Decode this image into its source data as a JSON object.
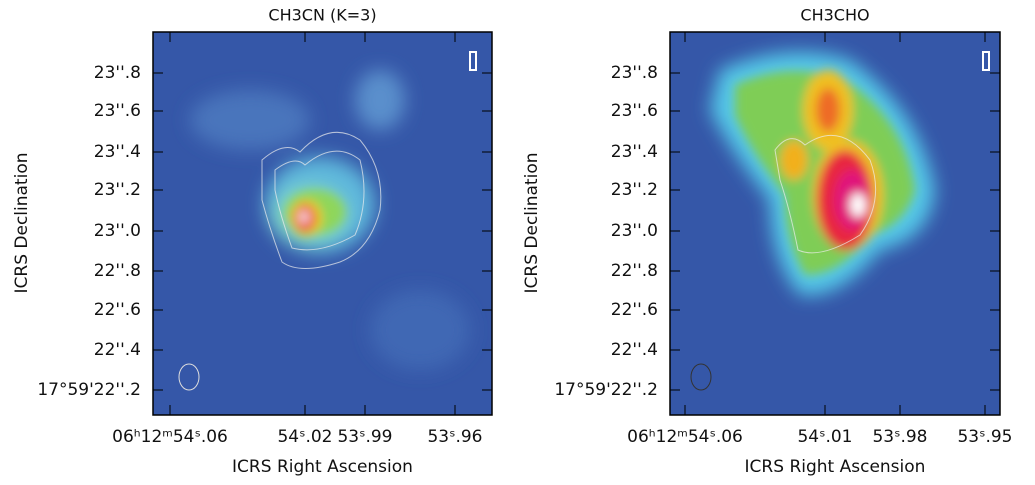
{
  "panels": [
    {
      "title": "CH3CN (K=3)",
      "x_label": "ICRS Right Ascension",
      "y_label": "ICRS Declination",
      "xticks": [
        "06ʰ12ᵐ54ˢ.06",
        "54ˢ.02",
        "53ˢ.99",
        "53ˢ.96"
      ],
      "yticks": [
        "23''.8",
        "23''.6",
        "23''.4",
        "23''.2",
        "23''.0",
        "22''.8",
        "22''.6",
        "22''.4",
        "17°59'22''.2"
      ]
    },
    {
      "title": "CH3CHO",
      "x_label": "ICRS Right Ascension",
      "y_label": "ICRS Declination",
      "xticks": [
        "06ʰ12ᵐ54ˢ.06",
        "54ˢ.01",
        "53ˢ.98",
        "53ˢ.95"
      ],
      "yticks": [
        "23''.8",
        "23''.6",
        "23''.4",
        "23''.2",
        "23''.0",
        "22''.8",
        "22''.6",
        "22''.4",
        "17°59'22''.2"
      ]
    }
  ]
}
